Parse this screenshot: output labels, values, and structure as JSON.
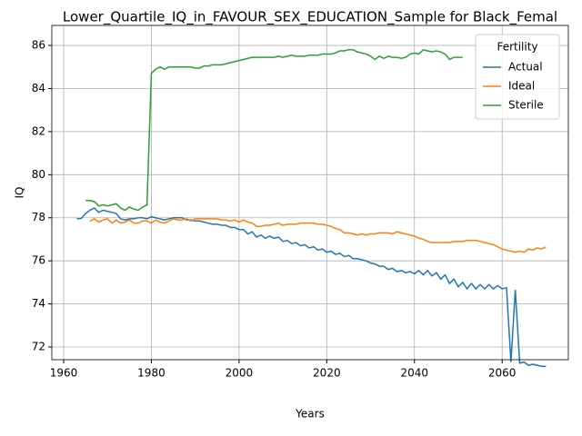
{
  "chart_data": {
    "type": "line",
    "title": "Lower_Quartile_IQ_in_FAVOUR_SEX_EDUCATION_Sample for Black_Femal",
    "xlabel": "Years",
    "ylabel": "IQ",
    "legend_title": "Fertility",
    "legend": "upper right",
    "grid": true,
    "xlim": [
      1957.3,
      2075.1
    ],
    "ylim": [
      71.41,
      86.93
    ],
    "xticks": [
      1960,
      1980,
      2000,
      2020,
      2040,
      2060
    ],
    "yticks": [
      72,
      74,
      76,
      78,
      80,
      82,
      84,
      86
    ],
    "x": [
      1963,
      1964,
      1965,
      1966,
      1967,
      1968,
      1969,
      1970,
      1971,
      1972,
      1973,
      1974,
      1975,
      1976,
      1977,
      1978,
      1979,
      1980,
      1981,
      1982,
      1983,
      1984,
      1985,
      1986,
      1987,
      1988,
      1989,
      1990,
      1991,
      1992,
      1993,
      1994,
      1995,
      1996,
      1997,
      1998,
      1999,
      2000,
      2001,
      2002,
      2003,
      2004,
      2005,
      2006,
      2007,
      2008,
      2009,
      2010,
      2011,
      2012,
      2013,
      2014,
      2015,
      2016,
      2017,
      2018,
      2019,
      2020,
      2021,
      2022,
      2023,
      2024,
      2025,
      2026,
      2027,
      2028,
      2029,
      2030,
      2031,
      2032,
      2033,
      2034,
      2035,
      2036,
      2037,
      2038,
      2039,
      2040,
      2041,
      2042,
      2043,
      2044,
      2045,
      2046,
      2047,
      2048,
      2049,
      2050,
      2051,
      2052,
      2053,
      2054,
      2055,
      2056,
      2057,
      2058,
      2059,
      2060,
      2061,
      2062,
      2063,
      2064,
      2065,
      2066,
      2067,
      2068,
      2069,
      2070
    ],
    "series": [
      {
        "name": "Actual",
        "color": "#1f77b4",
        "values": [
          77.95,
          77.97,
          78.2,
          78.35,
          78.45,
          78.25,
          78.35,
          78.3,
          78.25,
          78.2,
          77.95,
          77.9,
          77.95,
          77.95,
          78.0,
          78.0,
          77.95,
          78.05,
          78.0,
          77.95,
          77.9,
          77.95,
          78.0,
          78.0,
          78.0,
          77.9,
          77.9,
          77.85,
          77.85,
          77.8,
          77.75,
          77.7,
          77.7,
          77.65,
          77.65,
          77.55,
          77.55,
          77.45,
          77.45,
          77.25,
          77.35,
          77.1,
          77.2,
          77.05,
          77.15,
          77.05,
          77.1,
          76.9,
          76.95,
          76.8,
          76.85,
          76.7,
          76.75,
          76.6,
          76.65,
          76.5,
          76.55,
          76.4,
          76.45,
          76.3,
          76.35,
          76.2,
          76.25,
          76.1,
          76.1,
          76.05,
          76.0,
          75.9,
          75.85,
          75.75,
          75.75,
          75.6,
          75.65,
          75.5,
          75.55,
          75.45,
          75.5,
          75.4,
          75.55,
          75.35,
          75.55,
          75.3,
          75.45,
          75.15,
          75.35,
          74.95,
          75.15,
          74.8,
          75.0,
          74.7,
          74.95,
          74.7,
          74.9,
          74.7,
          74.9,
          74.7,
          74.85,
          74.7,
          74.75,
          71.3,
          74.65,
          71.25,
          71.3,
          71.15,
          71.2,
          71.15,
          71.1,
          71.1
        ]
      },
      {
        "name": "Ideal",
        "color": "#ff7f0e",
        "values": [
          null,
          null,
          null,
          77.85,
          77.95,
          77.8,
          77.9,
          77.95,
          77.75,
          77.9,
          77.75,
          77.8,
          77.9,
          77.75,
          77.75,
          77.85,
          77.85,
          77.75,
          77.9,
          77.8,
          77.75,
          77.85,
          77.95,
          77.9,
          77.9,
          77.95,
          77.85,
          77.95,
          77.95,
          77.95,
          77.95,
          77.95,
          77.95,
          77.9,
          77.9,
          77.85,
          77.9,
          77.8,
          77.9,
          77.8,
          77.75,
          77.6,
          77.6,
          77.65,
          77.65,
          77.7,
          77.75,
          77.65,
          77.7,
          77.7,
          77.7,
          77.75,
          77.75,
          77.75,
          77.75,
          77.7,
          77.7,
          77.65,
          77.6,
          77.5,
          77.45,
          77.3,
          77.3,
          77.25,
          77.2,
          77.25,
          77.2,
          77.25,
          77.25,
          77.3,
          77.3,
          77.3,
          77.25,
          77.35,
          77.3,
          77.25,
          77.2,
          77.15,
          77.05,
          77.0,
          76.9,
          76.85,
          76.85,
          76.85,
          76.85,
          76.85,
          76.9,
          76.9,
          76.9,
          76.95,
          76.95,
          76.95,
          76.9,
          76.85,
          76.8,
          76.75,
          76.65,
          76.55,
          76.5,
          76.45,
          76.4,
          76.45,
          76.4,
          76.55,
          76.5,
          76.6,
          76.55,
          76.65
        ]
      },
      {
        "name": "Sterile",
        "color": "#2ca02c",
        "values": [
          null,
          null,
          78.8,
          78.8,
          78.75,
          78.55,
          78.6,
          78.55,
          78.6,
          78.65,
          78.45,
          78.35,
          78.5,
          78.4,
          78.35,
          78.5,
          78.6,
          84.7,
          84.9,
          85.0,
          84.9,
          85.0,
          85.0,
          85.0,
          85.0,
          85.0,
          85.0,
          84.95,
          84.95,
          85.05,
          85.05,
          85.1,
          85.1,
          85.1,
          85.15,
          85.2,
          85.25,
          85.3,
          85.35,
          85.4,
          85.45,
          85.45,
          85.45,
          85.45,
          85.45,
          85.45,
          85.5,
          85.45,
          85.5,
          85.55,
          85.5,
          85.5,
          85.5,
          85.55,
          85.55,
          85.55,
          85.6,
          85.6,
          85.6,
          85.65,
          85.75,
          85.75,
          85.8,
          85.8,
          85.7,
          85.65,
          85.6,
          85.5,
          85.35,
          85.5,
          85.4,
          85.5,
          85.45,
          85.45,
          85.4,
          85.45,
          85.6,
          85.65,
          85.6,
          85.8,
          85.75,
          85.7,
          85.75,
          85.7,
          85.6,
          85.35,
          85.45,
          85.45,
          85.45,
          null,
          null,
          null,
          null,
          null,
          null,
          null,
          null,
          null,
          null,
          null,
          null,
          null,
          null,
          null,
          null,
          null,
          null,
          null
        ]
      }
    ]
  }
}
